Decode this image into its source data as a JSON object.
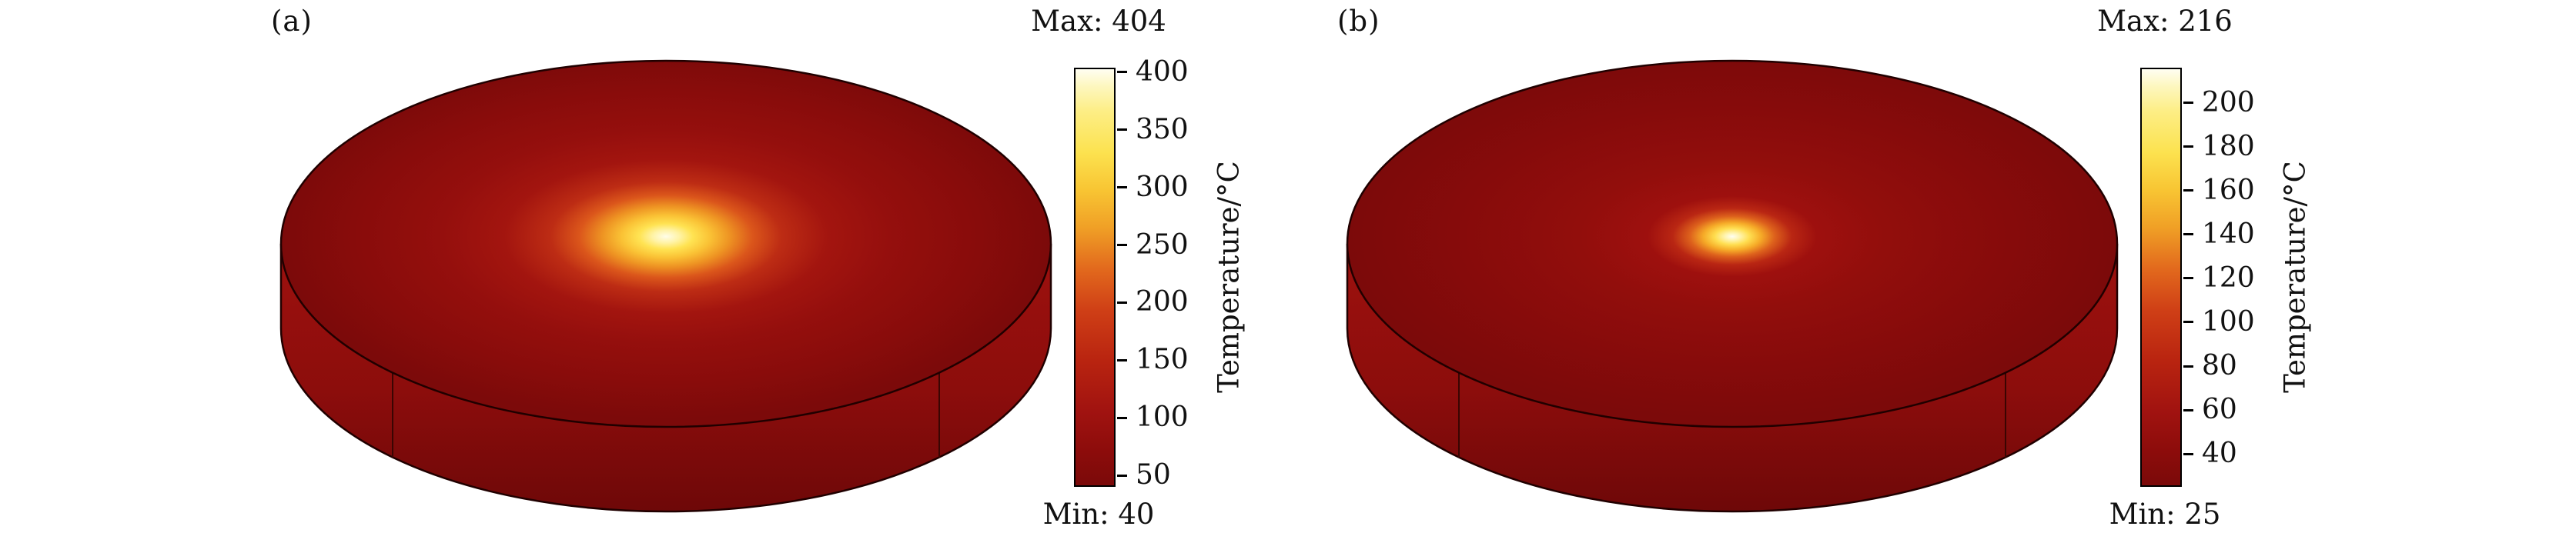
{
  "figure": {
    "panels": [
      {
        "label": "(a)",
        "max_label": "Max: 404",
        "min_label": "Min: 40",
        "colorbar": {
          "title": "Temperature/°C",
          "min": 40,
          "max": 404,
          "ticks": [
            400,
            350,
            300,
            250,
            200,
            150,
            100,
            50
          ]
        }
      },
      {
        "label": "(b)",
        "max_label": "Max: 216",
        "min_label": "Min: 25",
        "colorbar": {
          "title": "Temperature/°C",
          "min": 25,
          "max": 216,
          "ticks": [
            200,
            180,
            160,
            140,
            120,
            100,
            80,
            60,
            40
          ]
        }
      }
    ],
    "colors": {
      "background": "#ffffff",
      "text": "#111111",
      "outline": "#200000",
      "hotspot_core": "#fffde8",
      "disk_rim": "#7c0a0a"
    }
  },
  "chart_data": [
    {
      "type": "heatmap",
      "title": "(a)",
      "variable": "Temperature",
      "unit": "°C",
      "min": 40,
      "max": 404,
      "colorbar_ticks": [
        400,
        350,
        300,
        250,
        200,
        150,
        100,
        50
      ],
      "annotations": [
        "Max: 404",
        "Min: 40"
      ],
      "geometry": "3D cylindrical disk shown in isometric view with visible rim",
      "pattern": "broad radial hotspot at disk center reaching 404°C, decaying smoothly to ~40°C dark red at the rim",
      "legend_position": "right vertical colorbar",
      "colormap": [
        "#7c0a0a",
        "#a11310",
        "#cf3f16",
        "#f0a026",
        "#fce24f",
        "#fdee86",
        "#fffef2"
      ]
    },
    {
      "type": "heatmap",
      "title": "(b)",
      "variable": "Temperature",
      "unit": "°C",
      "min": 25,
      "max": 216,
      "colorbar_ticks": [
        200,
        180,
        160,
        140,
        120,
        100,
        80,
        60,
        40
      ],
      "annotations": [
        "Max: 216",
        "Min: 25"
      ],
      "geometry": "3D cylindrical disk shown in isometric view with visible rim",
      "pattern": "small tight radial hotspot at disk center reaching 216°C, decaying quickly to ~25°C dark red over most of the disk",
      "legend_position": "right vertical colorbar",
      "colormap": [
        "#7c0a0a",
        "#a11310",
        "#cf3f16",
        "#f0a026",
        "#fce24f",
        "#fdee86",
        "#fffef2"
      ]
    }
  ]
}
